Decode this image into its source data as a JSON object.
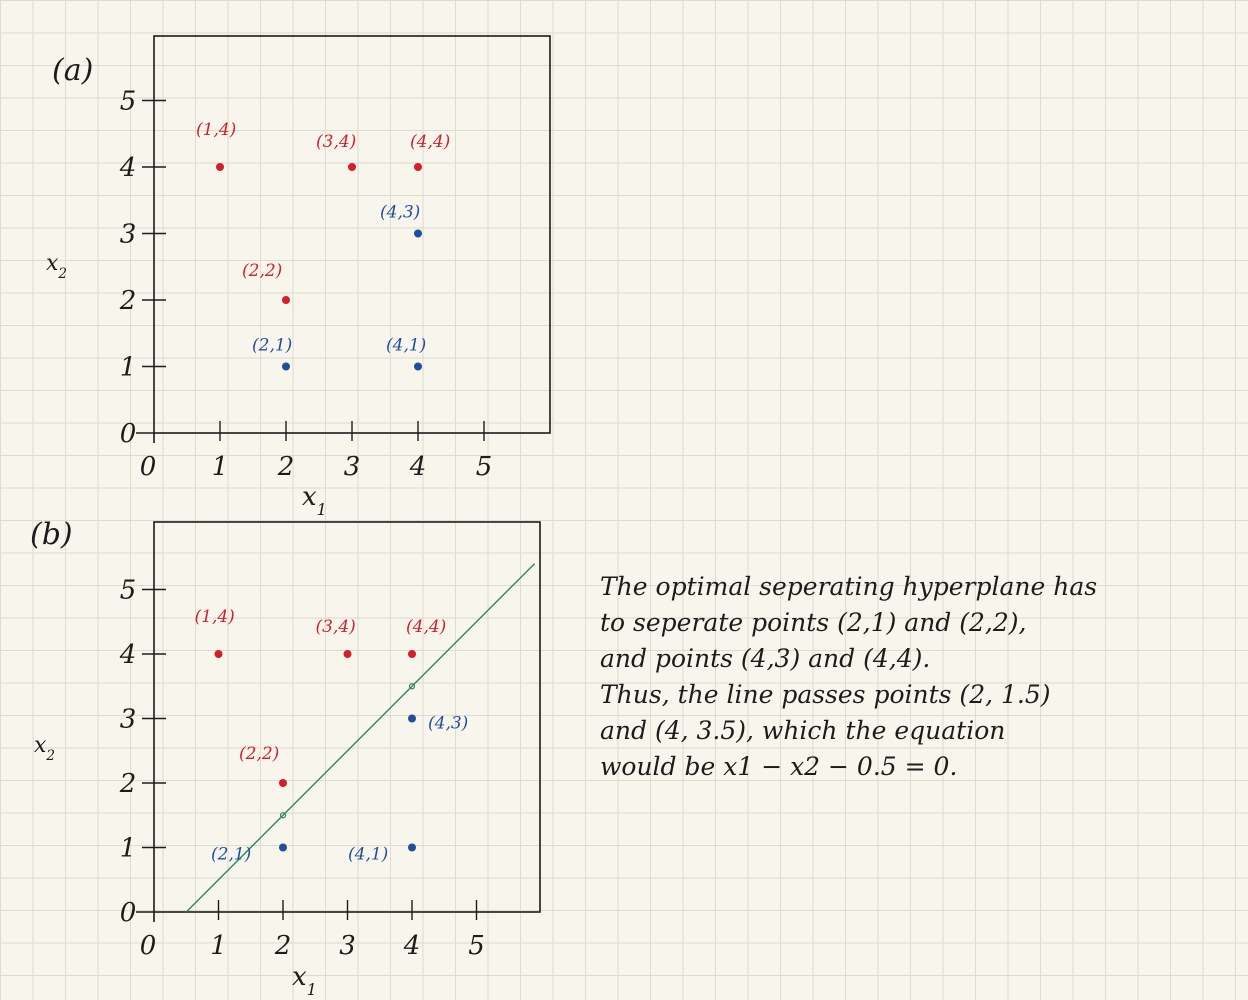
{
  "colors": {
    "ink": "#1c1c1c",
    "class_red": "#d41f2a",
    "class_blue": "#1f4f9a",
    "hyperplane": "#2e8b57",
    "paper": "#f7f5ec",
    "grid": "#dcdccf"
  },
  "chart_data": [
    {
      "panel": "(a)",
      "type": "scatter",
      "xlabel": "x1",
      "ylabel": "x2",
      "xlim": [
        0,
        6
      ],
      "ylim": [
        0,
        6
      ],
      "x_ticks": [
        "0",
        "1",
        "2",
        "3",
        "4",
        "5"
      ],
      "y_ticks": [
        "0",
        "1",
        "2",
        "3",
        "4",
        "5"
      ],
      "series": [
        {
          "color": "red",
          "points": [
            {
              "x": 1,
              "y": 4,
              "label": "(1,4)"
            },
            {
              "x": 3,
              "y": 4,
              "label": "(3,4)"
            },
            {
              "x": 4,
              "y": 4,
              "label": "(4,4)"
            },
            {
              "x": 2,
              "y": 2,
              "label": "(2,2)"
            }
          ]
        },
        {
          "color": "blue",
          "points": [
            {
              "x": 4,
              "y": 3,
              "label": "(4,3)"
            },
            {
              "x": 2,
              "y": 1,
              "label": "(2,1)"
            },
            {
              "x": 4,
              "y": 1,
              "label": "(4,1)"
            }
          ]
        }
      ]
    },
    {
      "panel": "(b)",
      "type": "scatter",
      "xlabel": "x1",
      "ylabel": "x2",
      "xlim": [
        0,
        6
      ],
      "ylim": [
        0,
        6
      ],
      "x_ticks": [
        "0",
        "1",
        "2",
        "3",
        "4",
        "5"
      ],
      "y_ticks": [
        "0",
        "1",
        "2",
        "3",
        "4",
        "5"
      ],
      "series": [
        {
          "color": "red",
          "points": [
            {
              "x": 1,
              "y": 4,
              "label": "(1,4)"
            },
            {
              "x": 3,
              "y": 4,
              "label": "(3,4)"
            },
            {
              "x": 4,
              "y": 4,
              "label": "(4,4)"
            },
            {
              "x": 2,
              "y": 2,
              "label": "(2,2)"
            }
          ]
        },
        {
          "color": "blue",
          "points": [
            {
              "x": 4,
              "y": 3,
              "label": "(4,3)"
            },
            {
              "x": 2,
              "y": 1,
              "label": "(2,1)"
            },
            {
              "x": 4,
              "y": 1,
              "label": "(4,1)"
            }
          ]
        }
      ],
      "line": {
        "slope": 1,
        "intercept": -0.5,
        "from_x": 0.5,
        "to_x": 5.9
      },
      "line_markers": [
        {
          "x": 2,
          "y": 1.5
        },
        {
          "x": 4,
          "y": 3.5
        }
      ]
    }
  ],
  "note": {
    "lines": [
      "The optimal seperating hyperplane has",
      "to seperate points (2,1) and (2,2),",
      "and points (4,3) and (4,4).",
      "Thus, the line passes points (2, 1.5)",
      "and (4, 3.5), which the equation",
      "would be x1 − x2 − 0.5 = 0."
    ]
  }
}
